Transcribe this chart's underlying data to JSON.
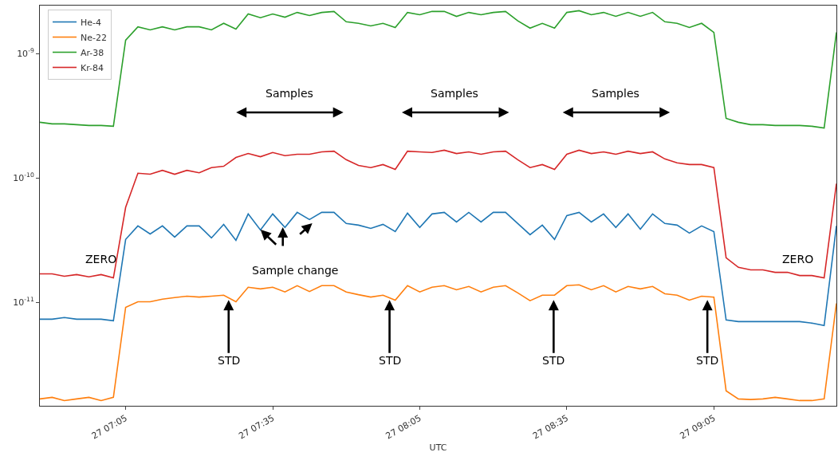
{
  "chart_data": {
    "type": "line",
    "xlabel": "UTC",
    "log": "y",
    "grid": false,
    "legend": "top left",
    "categories": [
      null,
      null,
      null,
      null,
      null,
      null,
      null,
      "27 07:05",
      null,
      null,
      null,
      null,
      null,
      null,
      null,
      null,
      null,
      null,
      null,
      "27 07:35",
      null,
      null,
      null,
      null,
      null,
      null,
      null,
      null,
      null,
      null,
      null,
      "27 08:05",
      null,
      null,
      null,
      null,
      null,
      null,
      null,
      null,
      null,
      null,
      null,
      "27 08:35",
      null,
      null,
      null,
      null,
      null,
      null,
      null,
      null,
      null,
      null,
      null,
      "27 09:05",
      null,
      null,
      null,
      null,
      null,
      null,
      null,
      null,
      null,
      null
    ],
    "ylim": [
      1.47e-12,
      2.43e-09
    ],
    "yticks": [
      {
        "value": 1e-11,
        "label": "10$^{-11}$"
      },
      {
        "value": 1e-10,
        "label": "10$^{-10}$"
      },
      {
        "value": 1e-09,
        "label": "10$^{-9}$"
      }
    ],
    "series": [
      {
        "name": "He-4",
        "color": "#1f77b4",
        "values": [
          7.31e-12,
          7.31e-12,
          7.53e-12,
          7.31e-12,
          7.31e-12,
          7.31e-12,
          7.1e-12,
          3.2e-11,
          4.11e-11,
          3.54e-11,
          4.11e-11,
          3.34e-11,
          4.11e-11,
          4.11e-11,
          3.29e-11,
          4.23e-11,
          3.15e-11,
          5.13e-11,
          3.81e-11,
          5.13e-11,
          3.99e-11,
          5.28e-11,
          4.62e-11,
          5.28e-11,
          5.28e-11,
          4.3e-11,
          4.17e-11,
          3.93e-11,
          4.23e-11,
          3.7e-11,
          5.2e-11,
          3.99e-11,
          5.13e-11,
          5.28e-11,
          4.42e-11,
          5.28e-11,
          4.42e-11,
          5.28e-11,
          5.28e-11,
          4.3e-11,
          3.49e-11,
          4.17e-11,
          3.2e-11,
          4.98e-11,
          5.28e-11,
          4.42e-11,
          5.13e-11,
          3.99e-11,
          5.13e-11,
          3.87e-11,
          5.13e-11,
          4.3e-11,
          4.17e-11,
          3.6e-11,
          4.11e-11,
          3.7e-11,
          7.2e-12,
          6.99e-12,
          6.99e-12,
          6.99e-12,
          6.99e-12,
          6.99e-12,
          6.99e-12,
          6.79e-12,
          6.49e-12,
          4.11e-11
        ]
      },
      {
        "name": "Ne-22",
        "color": "#ff7f0e",
        "values": [
          1.67e-12,
          1.72e-12,
          1.62e-12,
          1.67e-12,
          1.72e-12,
          1.62e-12,
          1.72e-12,
          9.1e-12,
          1.01e-11,
          1.01e-11,
          1.06e-11,
          1.09e-11,
          1.12e-11,
          1.1e-11,
          1.12e-11,
          1.14e-11,
          1.01e-11,
          1.32e-11,
          1.28e-11,
          1.32e-11,
          1.21e-11,
          1.36e-11,
          1.22e-11,
          1.36e-11,
          1.36e-11,
          1.21e-11,
          1.15e-11,
          1.1e-11,
          1.14e-11,
          1.04e-11,
          1.36e-11,
          1.21e-11,
          1.32e-11,
          1.36e-11,
          1.26e-11,
          1.34e-11,
          1.21e-11,
          1.32e-11,
          1.36e-11,
          1.19e-11,
          1.03e-11,
          1.14e-11,
          1.14e-11,
          1.36e-11,
          1.38e-11,
          1.26e-11,
          1.36e-11,
          1.21e-11,
          1.34e-11,
          1.28e-11,
          1.34e-11,
          1.17e-11,
          1.14e-11,
          1.04e-11,
          1.12e-11,
          1.1e-11,
          1.94e-12,
          1.67e-12,
          1.65e-12,
          1.67e-12,
          1.72e-12,
          1.67e-12,
          1.62e-12,
          1.62e-12,
          1.67e-12,
          9.8e-12
        ]
      },
      {
        "name": "Ar-38",
        "color": "#2ca02c",
        "values": [
          2.8e-10,
          2.72e-10,
          2.72e-10,
          2.68e-10,
          2.64e-10,
          2.64e-10,
          2.6e-10,
          1.28e-09,
          1.64e-09,
          1.55e-09,
          1.64e-09,
          1.55e-09,
          1.64e-09,
          1.64e-09,
          1.55e-09,
          1.75e-09,
          1.57e-09,
          2.08e-09,
          1.94e-09,
          2.08e-09,
          1.96e-09,
          2.14e-09,
          2.02e-09,
          2.14e-09,
          2.18e-09,
          1.8e-09,
          1.75e-09,
          1.67e-09,
          1.75e-09,
          1.62e-09,
          2.14e-09,
          2.05e-09,
          2.18e-09,
          2.18e-09,
          1.99e-09,
          2.14e-09,
          2.05e-09,
          2.14e-09,
          2.18e-09,
          1.83e-09,
          1.6e-09,
          1.75e-09,
          1.6e-09,
          2.14e-09,
          2.21e-09,
          2.05e-09,
          2.14e-09,
          1.99e-09,
          2.14e-09,
          1.99e-09,
          2.14e-09,
          1.8e-09,
          1.75e-09,
          1.62e-09,
          1.75e-09,
          1.48e-09,
          3.01e-10,
          2.8e-10,
          2.68e-10,
          2.68e-10,
          2.64e-10,
          2.64e-10,
          2.64e-10,
          2.6e-10,
          2.52e-10,
          1.48e-09
        ]
      },
      {
        "name": "Kr-84",
        "color": "#d62728",
        "values": [
          1.69e-11,
          1.69e-11,
          1.62e-11,
          1.67e-11,
          1.6e-11,
          1.67e-11,
          1.57e-11,
          5.8e-11,
          1.09e-10,
          1.07e-10,
          1.15e-10,
          1.07e-10,
          1.15e-10,
          1.1e-10,
          1.21e-10,
          1.24e-10,
          1.46e-10,
          1.57e-10,
          1.48e-10,
          1.6e-10,
          1.51e-10,
          1.55e-10,
          1.55e-10,
          1.62e-10,
          1.64e-10,
          1.4e-10,
          1.26e-10,
          1.21e-10,
          1.28e-10,
          1.17e-10,
          1.64e-10,
          1.62e-10,
          1.6e-10,
          1.67e-10,
          1.57e-10,
          1.62e-10,
          1.55e-10,
          1.62e-10,
          1.64e-10,
          1.4e-10,
          1.21e-10,
          1.28e-10,
          1.17e-10,
          1.55e-10,
          1.67e-10,
          1.57e-10,
          1.62e-10,
          1.55e-10,
          1.64e-10,
          1.57e-10,
          1.62e-10,
          1.42e-10,
          1.32e-10,
          1.28e-10,
          1.28e-10,
          1.21e-10,
          2.28e-11,
          1.91e-11,
          1.82e-11,
          1.82e-11,
          1.74e-11,
          1.74e-11,
          1.64e-11,
          1.64e-11,
          1.57e-11,
          9e-11
        ]
      }
    ],
    "annotations": [
      "Samples",
      "Samples",
      "Samples",
      "Sample change",
      {
        "text": "STD",
        "y": 1.14e-11
      },
      {
        "text": "STD",
        "y": 1.14e-11
      },
      {
        "text": "STD",
        "y": 1.14e-11
      },
      {
        "text": "STD",
        "y": 1.14e-11
      },
      "ZERO",
      "ZERO"
    ]
  }
}
